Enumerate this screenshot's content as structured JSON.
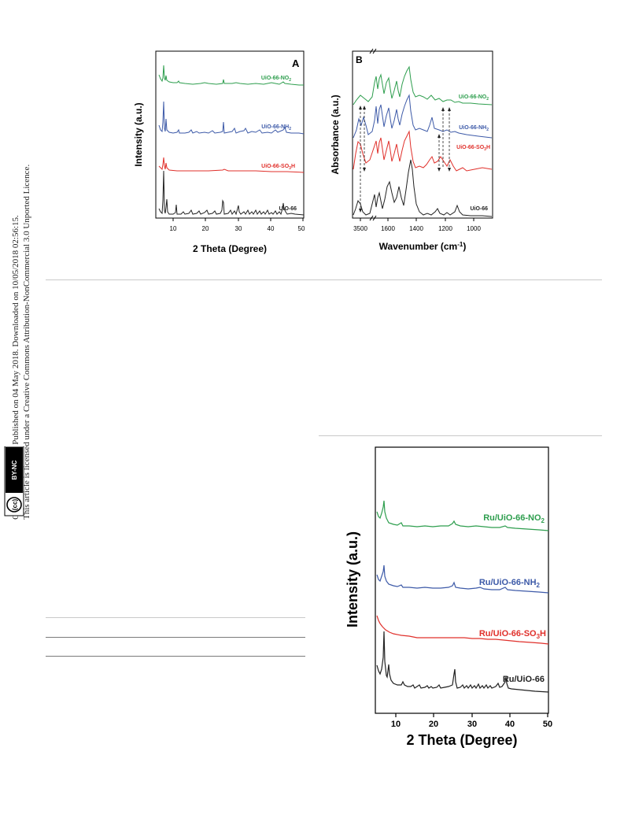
{
  "sidebar": {
    "line1": "Open Access Article. Published on 04 May 2018. Downloaded on 10/05/2018 02:56:15.",
    "line2": "This article is licensed under a Creative Commons Attribution-NonCommercial 3.0 Unported Licence.",
    "badge_cc": "(cc)",
    "badge_text": "BY-NC"
  },
  "figures": [
    {
      "id": "xrd-A",
      "panel_label": "A",
      "xlabel": "2 Theta (Degree)",
      "ylabel": "Intensity (a.u.)",
      "xticks": [
        "10",
        "20",
        "30",
        "40",
        "50"
      ],
      "series": [
        {
          "name": "UiO-66-NO",
          "sub": "2",
          "suffix": "",
          "color": "#2e9e4e"
        },
        {
          "name": "UiO-66-NH",
          "sub": "2",
          "suffix": "",
          "color": "#3d5aa8"
        },
        {
          "name": "UiO-66-SO",
          "sub": "3",
          "suffix": "H",
          "color": "#e0302b"
        },
        {
          "name": "UiO-66",
          "sub": "",
          "suffix": "",
          "color": "#222222"
        }
      ]
    },
    {
      "id": "ftir-B",
      "panel_label": "B",
      "xlabel": "Wavenumber (cm",
      "xlabel_sup": "-1",
      "xlabel_end": ")",
      "ylabel": "Absorbance (a.u.)",
      "xticks": [
        "3500",
        "1600",
        "1400",
        "1200",
        "1000"
      ],
      "series": [
        {
          "name": "UiO-66-NO",
          "sub": "2",
          "suffix": "",
          "color": "#2e9e4e"
        },
        {
          "name": "UiO-66-NH",
          "sub": "2",
          "suffix": "",
          "color": "#3d5aa8"
        },
        {
          "name": "UiO-66-SO",
          "sub": "3",
          "suffix": "H",
          "color": "#e0302b"
        },
        {
          "name": "UiO-66",
          "sub": "",
          "suffix": "",
          "color": "#222222"
        }
      ]
    },
    {
      "id": "xrd-Ru",
      "xlabel": "2 Theta (Degree)",
      "ylabel": "Intensity (a.u.)",
      "xticks": [
        "10",
        "20",
        "30",
        "40",
        "50"
      ],
      "series": [
        {
          "name": "Ru/UiO-66-NO",
          "sub": "2",
          "suffix": "",
          "color": "#2e9e4e"
        },
        {
          "name": "Ru/UiO-66-NH",
          "sub": "2",
          "suffix": "",
          "color": "#3d5aa8"
        },
        {
          "name": "Ru/UiO-66-SO",
          "sub": "3",
          "suffix": "H",
          "color": "#e0302b"
        },
        {
          "name": "Ru/UiO-66",
          "sub": "",
          "suffix": "",
          "color": "#222222"
        }
      ]
    }
  ]
}
